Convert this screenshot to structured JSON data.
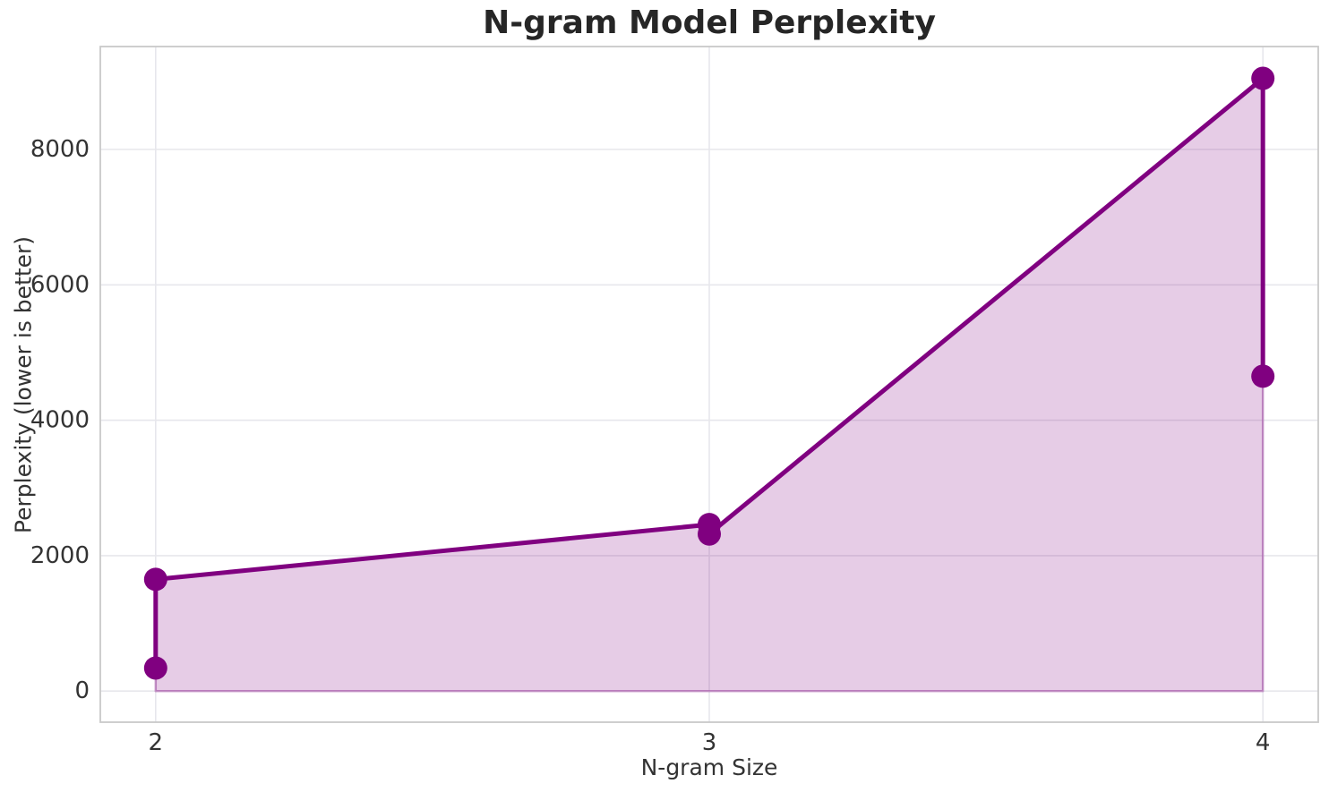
{
  "chart_data": {
    "type": "line",
    "title": "N-gram Model Perplexity",
    "xlabel": "N-gram Size",
    "ylabel": "Perplexity (lower is better)",
    "points": [
      {
        "x": 2,
        "y": 340
      },
      {
        "x": 2,
        "y": 1650
      },
      {
        "x": 3,
        "y": 2460
      },
      {
        "x": 3,
        "y": 2320
      },
      {
        "x": 4,
        "y": 9050
      },
      {
        "x": 4,
        "y": 4650
      }
    ],
    "fill_to_zero": true,
    "x_ticks": [
      {
        "value": 2,
        "label": "2"
      },
      {
        "value": 3,
        "label": "3"
      },
      {
        "value": 4,
        "label": "4"
      }
    ],
    "y_ticks": [
      {
        "value": 0,
        "label": "0"
      },
      {
        "value": 2000,
        "label": "2000"
      },
      {
        "value": 4000,
        "label": "4000"
      },
      {
        "value": 6000,
        "label": "6000"
      },
      {
        "value": 8000,
        "label": "8000"
      }
    ],
    "xlim": [
      1.9,
      4.1
    ],
    "ylim": [
      -460,
      9520
    ],
    "grid": true,
    "legend": false,
    "colors": {
      "line": "#800080",
      "marker": "#800080",
      "fill": "rgba(128,0,128,0.2)",
      "fill_edge": "rgba(128,0,128,0.35)",
      "grid": "#e7e7ec",
      "spine": "#c9c9c9",
      "tick_text": "#333333",
      "title_text": "#262626",
      "background": "#ffffff"
    },
    "line_width": 5,
    "marker_radius": 13
  }
}
